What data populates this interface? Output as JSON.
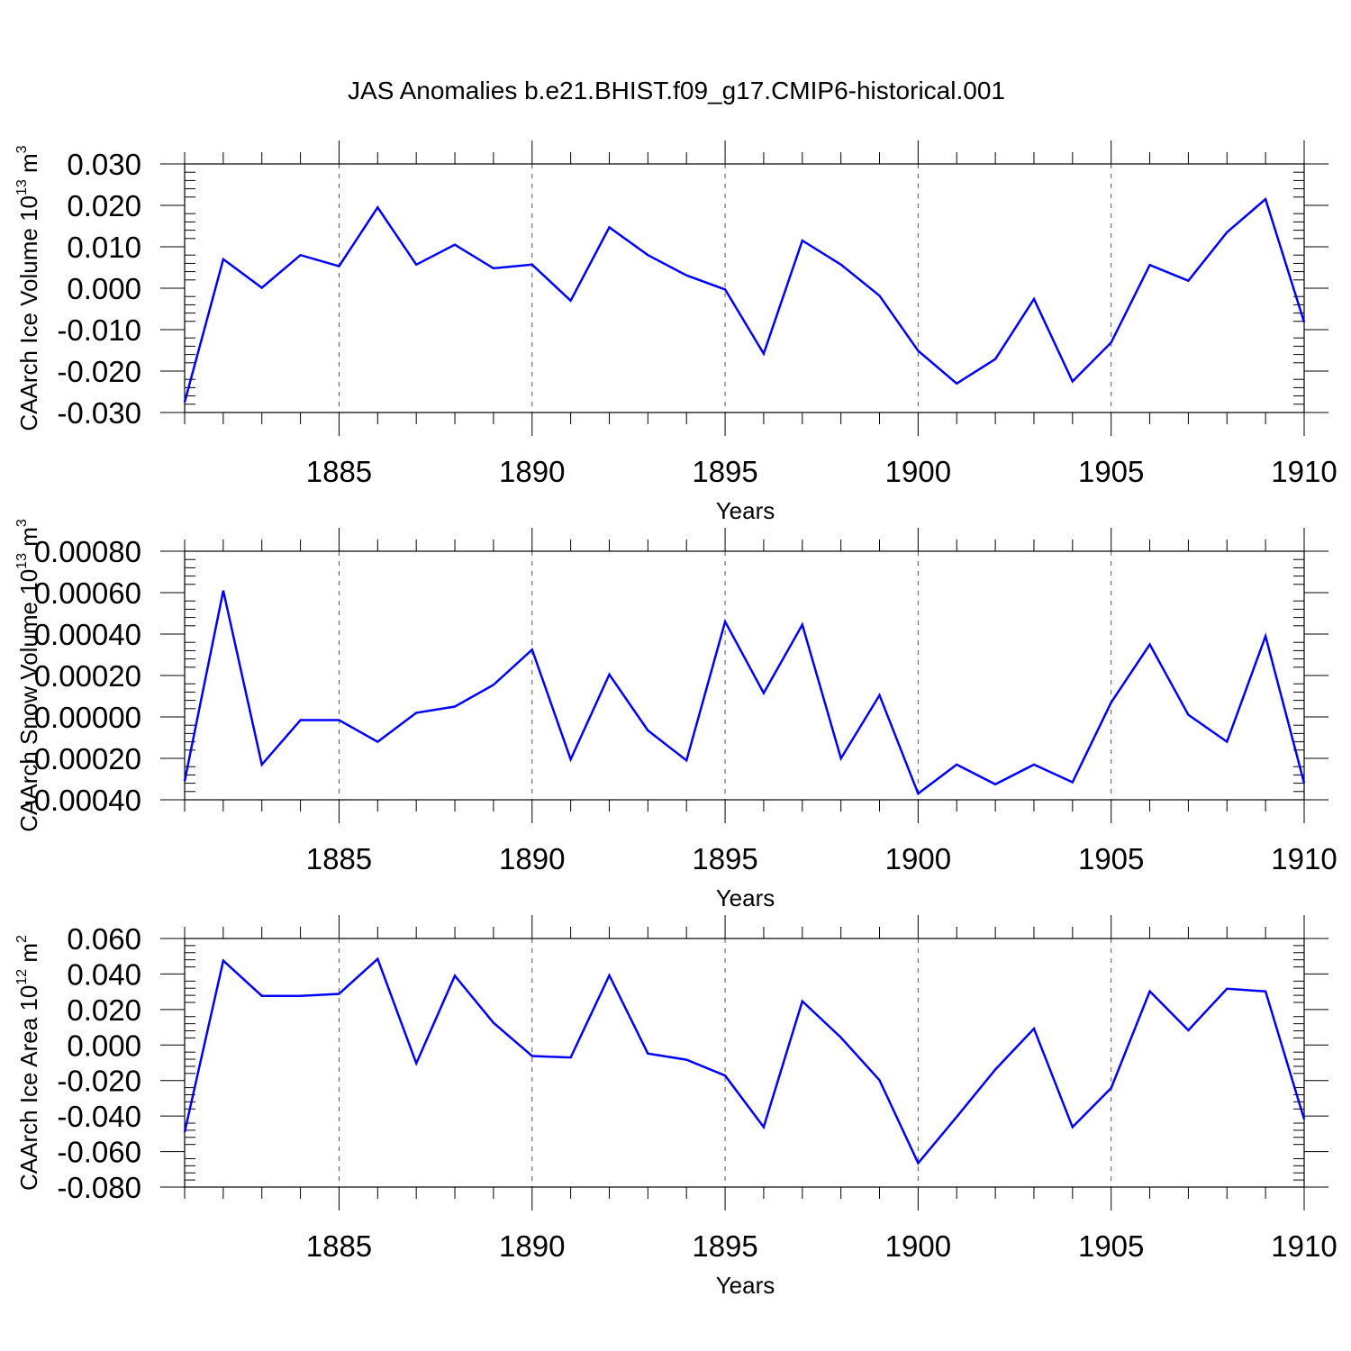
{
  "figure": {
    "title": "JAS Anomalies b.e21.BHIST.f09_g17.CMIP6-historical.001",
    "line_color": "#0000ff"
  },
  "chart_data": [
    {
      "type": "line",
      "title": "JAS Anomalies b.e21.BHIST.f09_g17.CMIP6-historical.001",
      "xlabel": "Years",
      "ylabel": {
        "text": "CAArch Ice Volume 10",
        "exp": "13",
        "unit": " m",
        "unit_exp": "3"
      },
      "xlim": [
        1881,
        1910
      ],
      "ylim": [
        -0.03,
        0.03
      ],
      "xticks": [
        1885,
        1890,
        1895,
        1900,
        1905,
        1910
      ],
      "xtick_labels": [
        "1885",
        "1890",
        "1895",
        "1900",
        "1905",
        "1910"
      ],
      "yticks": [
        -0.03,
        -0.02,
        -0.01,
        0.0,
        0.01,
        0.02,
        0.03
      ],
      "ytick_labels": [
        "-0.030",
        "-0.020",
        "-0.010",
        "0.000",
        "0.010",
        "0.020",
        "0.030"
      ],
      "grid": "x-dashed",
      "series": [
        {
          "name": "CAArch Ice Volume",
          "x": [
            1881,
            1882,
            1883,
            1884,
            1885,
            1886,
            1887,
            1888,
            1889,
            1890,
            1891,
            1892,
            1893,
            1894,
            1895,
            1896,
            1897,
            1898,
            1899,
            1900,
            1901,
            1902,
            1903,
            1904,
            1905,
            1906,
            1907,
            1908,
            1909,
            1910
          ],
          "values": [
            -0.0275,
            0.007,
            0.0001,
            0.008,
            0.0053,
            0.0195,
            0.0057,
            0.0105,
            0.0048,
            0.0057,
            -0.003,
            0.0147,
            0.008,
            0.0031,
            -0.0003,
            -0.0158,
            0.0115,
            0.0057,
            -0.0018,
            -0.0151,
            -0.023,
            -0.0171,
            -0.0026,
            -0.0225,
            -0.0131,
            0.0056,
            0.0018,
            0.0135,
            0.0215,
            -0.0082
          ]
        }
      ]
    },
    {
      "type": "line",
      "xlabel": "Years",
      "ylabel": {
        "text": "CAArch Snow Volume 10",
        "exp": "13",
        "unit": " m",
        "unit_exp": "3"
      },
      "xlim": [
        1881,
        1910
      ],
      "ylim": [
        -0.0004,
        0.0008
      ],
      "xticks": [
        1885,
        1890,
        1895,
        1900,
        1905,
        1910
      ],
      "xtick_labels": [
        "1885",
        "1890",
        "1895",
        "1900",
        "1905",
        "1910"
      ],
      "yticks": [
        -0.0004,
        -0.0002,
        0.0,
        0.0002,
        0.0004,
        0.0006,
        0.0008
      ],
      "ytick_labels": [
        "-0.00040",
        "-0.00020",
        "0.00000",
        "0.00020",
        "0.00040",
        "0.00060",
        "0.00080"
      ],
      "grid": "x-dashed",
      "series": [
        {
          "name": "CAArch Snow Volume",
          "x": [
            1881,
            1882,
            1883,
            1884,
            1885,
            1886,
            1887,
            1888,
            1889,
            1890,
            1891,
            1892,
            1893,
            1894,
            1895,
            1896,
            1897,
            1898,
            1899,
            1900,
            1901,
            1902,
            1903,
            1904,
            1905,
            1906,
            1907,
            1908,
            1909,
            1910
          ],
          "values": [
            -0.00031,
            0.00061,
            -0.00023,
            -1.5e-05,
            -1.5e-05,
            -0.00012,
            2e-05,
            5e-05,
            0.000155,
            0.000325,
            -0.000205,
            0.000205,
            -6.5e-05,
            -0.00021,
            0.00046,
            0.000115,
            0.000445,
            -0.0002,
            0.000105,
            -0.00037,
            -0.00023,
            -0.000325,
            -0.00023,
            -0.000315,
            7e-05,
            0.00035,
            1e-05,
            -0.00012,
            0.00039,
            -0.00032
          ]
        }
      ]
    },
    {
      "type": "line",
      "xlabel": "Years",
      "ylabel": {
        "text": "CAArch Ice Area 10",
        "exp": "12",
        "unit": " m",
        "unit_exp": "2"
      },
      "xlim": [
        1881,
        1910
      ],
      "ylim": [
        -0.08,
        0.06
      ],
      "xticks": [
        1885,
        1890,
        1895,
        1900,
        1905,
        1910
      ],
      "xtick_labels": [
        "1885",
        "1890",
        "1895",
        "1900",
        "1905",
        "1910"
      ],
      "yticks": [
        -0.08,
        -0.06,
        -0.04,
        -0.02,
        0.0,
        0.02,
        0.04,
        0.06
      ],
      "ytick_labels": [
        "-0.080",
        "-0.060",
        "-0.040",
        "-0.020",
        "0.000",
        "0.020",
        "0.040",
        "0.060"
      ],
      "grid": "x-dashed",
      "series": [
        {
          "name": "CAArch Ice Area",
          "x": [
            1881,
            1882,
            1883,
            1884,
            1885,
            1886,
            1887,
            1888,
            1889,
            1890,
            1891,
            1892,
            1893,
            1894,
            1895,
            1896,
            1897,
            1898,
            1899,
            1900,
            1901,
            1902,
            1903,
            1904,
            1905,
            1906,
            1907,
            1908,
            1909,
            1910
          ],
          "values": [
            -0.049,
            0.0475,
            0.0277,
            0.0277,
            0.0288,
            0.0485,
            -0.0103,
            0.039,
            0.0125,
            -0.0062,
            -0.007,
            0.0392,
            -0.0048,
            -0.0083,
            -0.0172,
            -0.0462,
            0.0247,
            0.0042,
            -0.0198,
            -0.0665,
            -0.0405,
            -0.0138,
            0.0092,
            -0.0462,
            -0.0242,
            0.0303,
            0.0083,
            0.0317,
            0.0302,
            -0.0418
          ]
        }
      ]
    }
  ]
}
